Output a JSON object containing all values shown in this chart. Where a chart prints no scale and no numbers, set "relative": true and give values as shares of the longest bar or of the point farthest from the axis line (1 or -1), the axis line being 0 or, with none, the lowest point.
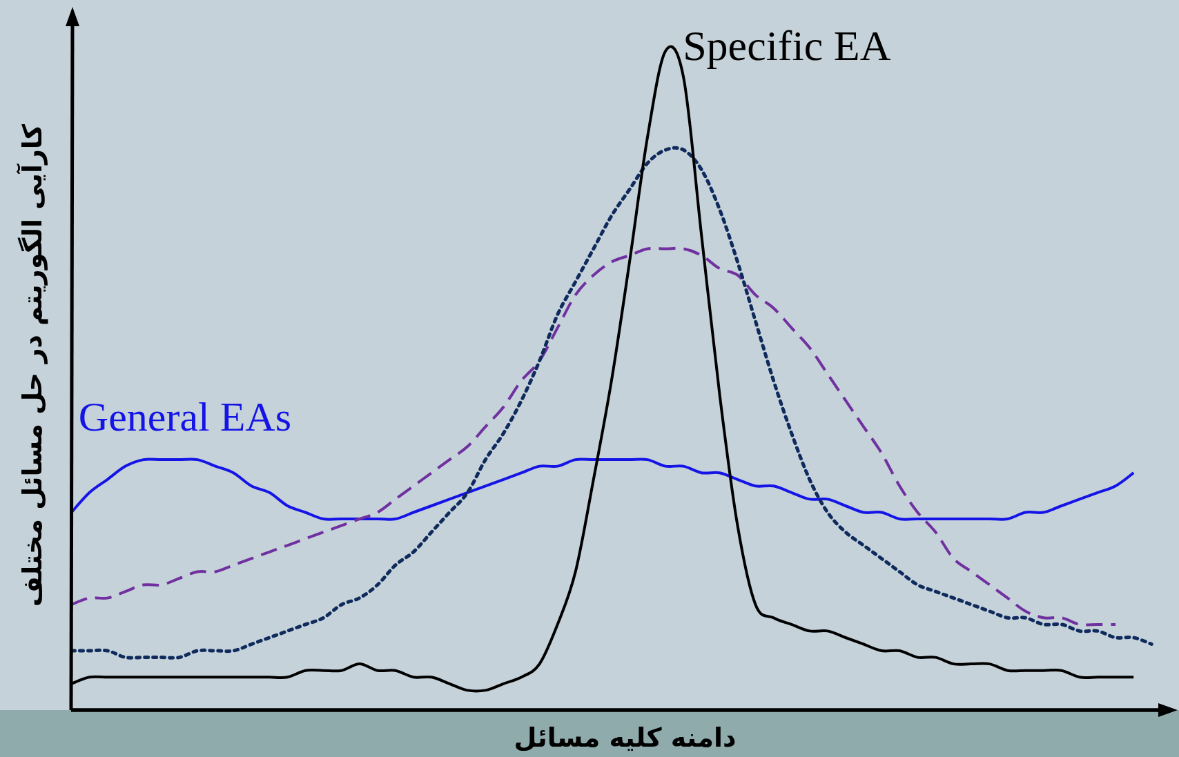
{
  "chart_data": {
    "type": "line",
    "relative": true,
    "xlabel": "دامنه کلیه مسائل",
    "ylabel": "کارآیی الگوریتم در حل مسائل مختلف",
    "categories": [
      null,
      null,
      null,
      null,
      null,
      null,
      null,
      null,
      null,
      null,
      null,
      null,
      null,
      null,
      null,
      null,
      null,
      null,
      null,
      null,
      null,
      null,
      null,
      null,
      null,
      null,
      null,
      null,
      null,
      null,
      null,
      null,
      null,
      null,
      null,
      null,
      null,
      null,
      null,
      null,
      null,
      null,
      null,
      null,
      null,
      null,
      null,
      null,
      null,
      null,
      null,
      null,
      null,
      null,
      null,
      null,
      null,
      null,
      null,
      null,
      null
    ],
    "series": [
      {
        "name": "General EAs",
        "color": "#1414e6",
        "line_style": "solid",
        "values": [
          0.3,
          0.33,
          0.35,
          0.37,
          0.38,
          0.38,
          0.38,
          0.38,
          0.37,
          0.36,
          0.34,
          0.33,
          0.31,
          0.3,
          0.29,
          0.29,
          0.29,
          0.29,
          0.29,
          0.3,
          0.31,
          0.32,
          0.33,
          0.34,
          0.35,
          0.36,
          0.37,
          0.37,
          0.38,
          0.38,
          0.38,
          0.38,
          0.38,
          0.37,
          0.37,
          0.36,
          0.36,
          0.35,
          0.34,
          0.34,
          0.33,
          0.32,
          0.32,
          0.31,
          0.3,
          0.3,
          0.29,
          0.29,
          0.29,
          0.29,
          0.29,
          0.29,
          0.29,
          0.3,
          0.3,
          0.31,
          0.32,
          0.33,
          0.34,
          0.36,
          null
        ]
      },
      {
        "color": "#7030a0",
        "line_style": "dashed",
        "values": [
          0.16,
          0.17,
          0.17,
          0.18,
          0.19,
          0.19,
          0.2,
          0.21,
          0.21,
          0.22,
          0.23,
          0.24,
          0.25,
          0.26,
          0.27,
          0.28,
          0.29,
          0.3,
          0.32,
          0.34,
          0.36,
          0.38,
          0.4,
          0.43,
          0.46,
          0.5,
          0.53,
          0.58,
          0.63,
          0.66,
          0.68,
          0.69,
          0.7,
          0.7,
          0.7,
          0.69,
          0.67,
          0.66,
          0.63,
          0.61,
          0.58,
          0.55,
          0.51,
          0.47,
          0.43,
          0.39,
          0.34,
          0.3,
          0.27,
          0.23,
          0.21,
          0.19,
          0.17,
          0.15,
          0.14,
          0.14,
          0.13,
          0.13,
          0.13,
          null,
          null
        ]
      },
      {
        "color": "#0f2a5c",
        "line_style": "dotted",
        "values": [
          0.09,
          0.09,
          0.09,
          0.08,
          0.08,
          0.08,
          0.08,
          0.09,
          0.09,
          0.09,
          0.1,
          0.11,
          0.12,
          0.13,
          0.14,
          0.16,
          0.17,
          0.19,
          0.22,
          0.24,
          0.27,
          0.3,
          0.33,
          0.38,
          0.42,
          0.47,
          0.53,
          0.6,
          0.65,
          0.7,
          0.75,
          0.79,
          0.83,
          0.85,
          0.85,
          0.82,
          0.76,
          0.68,
          0.59,
          0.5,
          0.42,
          0.35,
          0.3,
          0.27,
          0.25,
          0.23,
          0.21,
          0.19,
          0.18,
          0.17,
          0.16,
          0.15,
          0.14,
          0.14,
          0.13,
          0.13,
          0.12,
          0.12,
          0.11,
          0.11,
          0.1
        ]
      },
      {
        "name": "Specific EA",
        "color": "#000000",
        "line_style": "solid",
        "values": [
          0.04,
          0.05,
          0.05,
          0.05,
          0.05,
          0.05,
          0.05,
          0.05,
          0.05,
          0.05,
          0.05,
          0.05,
          0.05,
          0.06,
          0.06,
          0.06,
          0.07,
          0.06,
          0.06,
          0.05,
          0.05,
          0.04,
          0.03,
          0.03,
          0.04,
          0.05,
          0.07,
          0.13,
          0.21,
          0.35,
          0.5,
          0.68,
          0.87,
          1,
          0.96,
          0.72,
          0.48,
          0.28,
          0.16,
          0.14,
          0.13,
          0.12,
          0.12,
          0.11,
          0.1,
          0.09,
          0.09,
          0.08,
          0.08,
          0.07,
          0.07,
          0.07,
          0.06,
          0.06,
          0.06,
          0.06,
          0.05,
          0.05,
          0.05,
          0.05,
          null
        ]
      }
    ]
  }
}
